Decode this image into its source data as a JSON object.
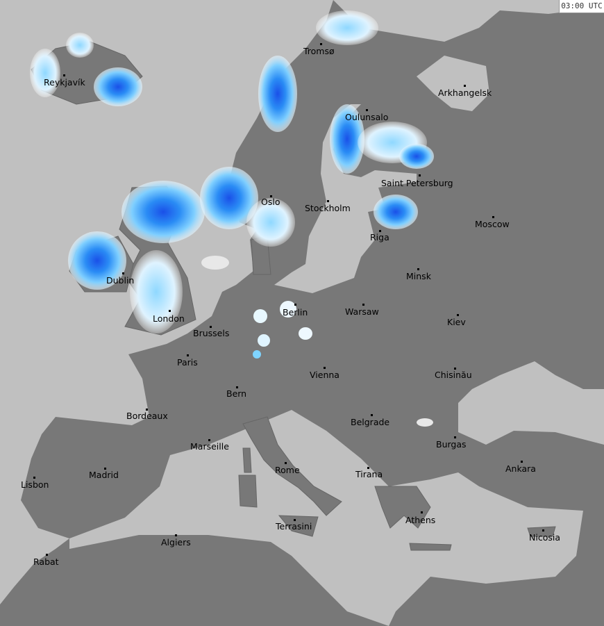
{
  "timestamp": "03:00 UTC",
  "colors": {
    "land": "#787878",
    "sea": "#c0c0c0",
    "light_precip": "#dff4ff",
    "moderate_precip": "#6cc8ff",
    "heavy_precip": "#1e78f0",
    "intense_precip": "#2040e0",
    "cloud_haze": "#d8d8d8"
  },
  "cities": [
    {
      "name": "Reykjavík"
    },
    {
      "name": "Tromsø"
    },
    {
      "name": "Arkhangelsk"
    },
    {
      "name": "Oulunsalo"
    },
    {
      "name": "Saint Petersburg"
    },
    {
      "name": "Oslo"
    },
    {
      "name": "Stockholm"
    },
    {
      "name": "Moscow"
    },
    {
      "name": "Riga"
    },
    {
      "name": "Dublin"
    },
    {
      "name": "Minsk"
    },
    {
      "name": "Berlin"
    },
    {
      "name": "Warsaw"
    },
    {
      "name": "London"
    },
    {
      "name": "Kiev"
    },
    {
      "name": "Brussels"
    },
    {
      "name": "Paris"
    },
    {
      "name": "Vienna"
    },
    {
      "name": "Chisinău"
    },
    {
      "name": "Bern"
    },
    {
      "name": "Bordeaux"
    },
    {
      "name": "Belgrade"
    },
    {
      "name": "Burgas"
    },
    {
      "name": "Marseille"
    },
    {
      "name": "Rome"
    },
    {
      "name": "Tirana"
    },
    {
      "name": "Madrid"
    },
    {
      "name": "Ankara"
    },
    {
      "name": "Lisbon"
    },
    {
      "name": "Athens"
    },
    {
      "name": "Terrasini"
    },
    {
      "name": "Algiers"
    },
    {
      "name": "Nicosia"
    },
    {
      "name": "Rabat"
    }
  ]
}
